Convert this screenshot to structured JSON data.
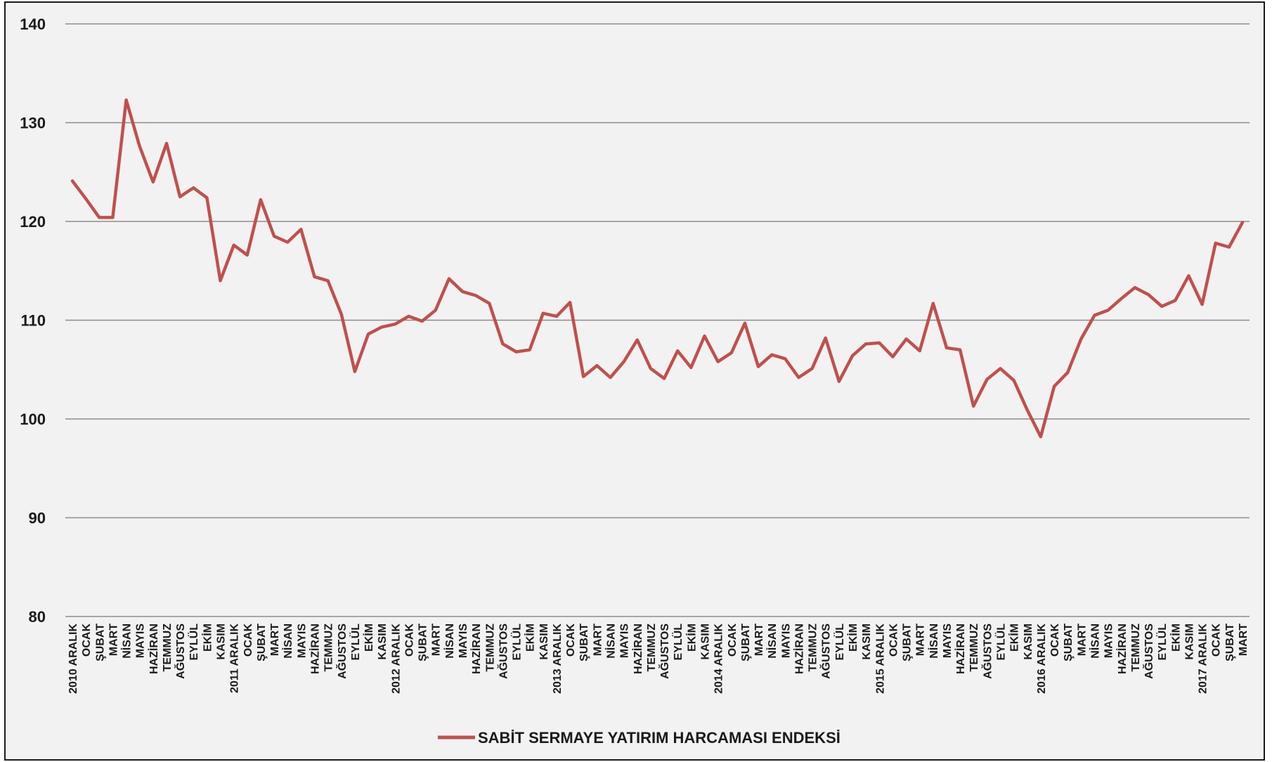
{
  "chart_data": {
    "type": "line",
    "title": "",
    "xlabel": "",
    "ylabel": "",
    "ylim": [
      80,
      140
    ],
    "yticks": [
      80,
      90,
      100,
      110,
      120,
      130,
      140
    ],
    "grid": true,
    "legend_position": "bottom-center",
    "categories": [
      "2010 ARALIK",
      "OCAK",
      "ŞUBAT",
      "MART",
      "NİSAN",
      "MAYIS",
      "HAZİRAN",
      "TEMMUZ",
      "AĞUSTOS",
      "EYLÜL",
      "EKİM",
      "KASIM",
      "2011 ARALIK",
      "OCAK",
      "ŞUBAT",
      "MART",
      "NİSAN",
      "MAYIS",
      "HAZİRAN",
      "TEMMUZ",
      "AĞUSTOS",
      "EYLÜL",
      "EKİM",
      "KASIM",
      "2012 ARALIK",
      "OCAK",
      "ŞUBAT",
      "MART",
      "NİSAN",
      "MAYIS",
      "HAZİRAN",
      "TEMMUZ",
      "AĞUSTOS",
      "EYLÜL",
      "EKİM",
      "KASIM",
      "2013 ARALIK",
      "OCAK",
      "ŞUBAT",
      "MART",
      "NİSAN",
      "MAYIS",
      "HAZİRAN",
      "TEMMUZ",
      "AĞUSTOS",
      "EYLÜL",
      "EKİM",
      "KASIM",
      "2014 ARALIK",
      "OCAK",
      "ŞUBAT",
      "MART",
      "NİSAN",
      "MAYIS",
      "HAZİRAN",
      "TEMMUZ",
      "AĞUSTOS",
      "EYLÜL",
      "EKİM",
      "KASIM",
      "2015 ARALIK",
      "OCAK",
      "ŞUBAT",
      "MART",
      "NİSAN",
      "MAYIS",
      "HAZİRAN",
      "TEMMUZ",
      "AĞUSTOS",
      "EYLÜL",
      "EKİM",
      "KASIM",
      "2016 ARALIK",
      "OCAK",
      "ŞUBAT",
      "MART",
      "NİSAN",
      "MAYIS",
      "HAZİRAN",
      "TEMMUZ",
      "AĞUSTOS",
      "EYLÜL",
      "EKİM",
      "KASIM",
      "2017 ARALIK",
      "OCAK",
      "ŞUBAT",
      "MART"
    ],
    "series": [
      {
        "name": "SABİT SERMAYE YATIRIM HARCAMASI ENDEKSİ",
        "color": "#c0504d",
        "values": [
          124.1,
          122.3,
          120.4,
          120.4,
          132.3,
          127.6,
          124.0,
          127.9,
          122.5,
          123.4,
          122.4,
          114.0,
          117.6,
          116.6,
          122.2,
          118.5,
          117.9,
          119.2,
          114.4,
          114.0,
          110.6,
          104.8,
          108.6,
          109.3,
          109.6,
          110.4,
          109.9,
          111.0,
          114.2,
          112.9,
          112.5,
          111.7,
          107.6,
          106.8,
          107.0,
          110.7,
          110.4,
          111.8,
          104.3,
          105.4,
          104.2,
          105.8,
          108.0,
          105.1,
          104.1,
          106.9,
          105.2,
          108.4,
          105.8,
          106.7,
          109.7,
          105.3,
          106.5,
          106.1,
          104.2,
          105.1,
          108.2,
          103.8,
          106.4,
          107.6,
          107.7,
          106.3,
          108.1,
          106.9,
          111.7,
          107.2,
          107.0,
          101.3,
          104.0,
          105.1,
          103.9,
          100.9,
          98.2,
          103.3,
          104.7,
          108.1,
          110.5,
          111.0,
          112.2,
          113.3,
          112.6,
          111.4,
          112.0,
          114.5,
          111.6,
          117.8,
          117.4,
          119.9
        ]
      }
    ]
  }
}
